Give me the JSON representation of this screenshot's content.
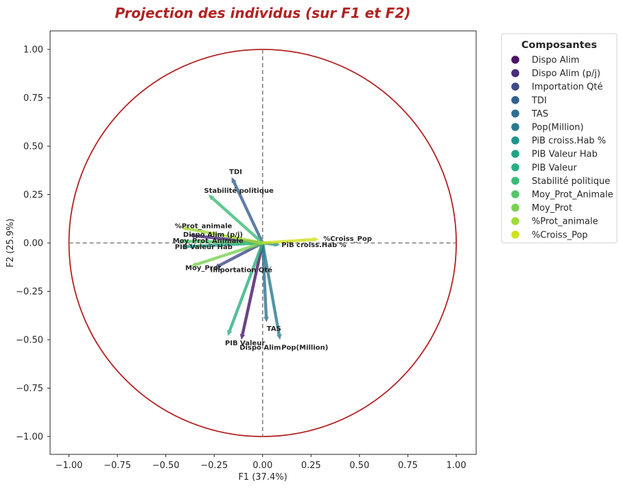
{
  "chart_data": {
    "type": "scatter",
    "subtype": "pca-correlation-circle",
    "title": "Projection des individus (sur F1 et F2)",
    "xlabel": "F1 (37.4%)",
    "ylabel": "F2 (25.9%)",
    "xlim": [
      -1.1,
      1.1
    ],
    "ylim": [
      -1.1,
      1.1
    ],
    "xticks": [
      "−1.00",
      "−0.75",
      "−0.50",
      "−0.25",
      "0.00",
      "0.25",
      "0.50",
      "0.75",
      "1.00"
    ],
    "yticks": [
      "1.00",
      "0.75",
      "0.50",
      "0.25",
      "0.00",
      "−0.25",
      "−0.50",
      "−0.75",
      "−1.00"
    ],
    "xtick_values": [
      -1.0,
      -0.75,
      -0.5,
      -0.25,
      0.0,
      0.25,
      0.5,
      0.75,
      1.0
    ],
    "ytick_values": [
      1.0,
      0.75,
      0.5,
      0.25,
      0.0,
      -0.25,
      -0.5,
      -0.75,
      -1.0
    ],
    "grid": false,
    "unit_circle": true,
    "circle_color": "#b22222",
    "title_color": "#b22222",
    "dashed_axes_color": "#808080",
    "legend": {
      "title": "Composantes",
      "placement": "outside-right"
    },
    "vectors": [
      {
        "name": "Dispo Alim",
        "x": -0.11,
        "y": -0.5,
        "color": "#481467"
      },
      {
        "name": "Dispo Alim (p/j)",
        "x": -0.38,
        "y": 0.04,
        "color": "#472d7b"
      },
      {
        "name": "Importation Qté",
        "x": -0.25,
        "y": -0.13,
        "color": "#3f4a8a"
      },
      {
        "name": "TDI",
        "x": -0.16,
        "y": 0.34,
        "color": "#345f8d"
      },
      {
        "name": "TAS",
        "x": 0.02,
        "y": -0.41,
        "color": "#2d718e"
      },
      {
        "name": "Pop(Million)",
        "x": 0.09,
        "y": -0.5,
        "color": "#29798e"
      },
      {
        "name": "PiB croiss.Hab %",
        "x": 0.09,
        "y": -0.01,
        "color": "#1f948c"
      },
      {
        "name": "PIB Valeur Hab",
        "x": -0.42,
        "y": -0.02,
        "color": "#20a386"
      },
      {
        "name": "PIB Valeur",
        "x": -0.18,
        "y": -0.48,
        "color": "#29af7f"
      },
      {
        "name": "Stabilité politique",
        "x": -0.28,
        "y": 0.25,
        "color": "#3bbb75"
      },
      {
        "name": "Moy_Prot_Animale",
        "x": -0.43,
        "y": 0.01,
        "color": "#54c568"
      },
      {
        "name": "Moy_Prot",
        "x": -0.37,
        "y": -0.12,
        "color": "#7ad151"
      },
      {
        "name": "%Prot_animale",
        "x": -0.42,
        "y": 0.08,
        "color": "#a2da37"
      },
      {
        "name": "%Croiss_Pop",
        "x": 0.29,
        "y": 0.02,
        "color": "#d0e11c"
      }
    ]
  }
}
